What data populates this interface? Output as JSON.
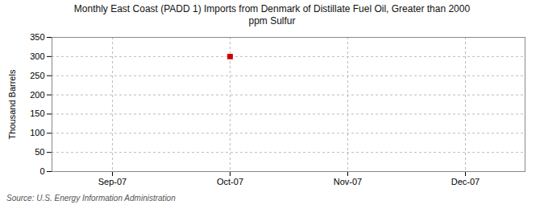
{
  "chart_data": {
    "type": "scatter",
    "title": "Monthly East Coast (PADD 1) Imports from Denmark of Distillate Fuel Oil, Greater than 2000\nppm Sulfur",
    "ylabel": "Thousand Barrels",
    "source": "Source: U.S. Energy Information Administration",
    "categories": [
      "Sep-07",
      "Oct-07",
      "Nov-07",
      "Dec-07"
    ],
    "values": [
      null,
      300,
      null,
      null
    ],
    "color": "#cc0000",
    "marker": "square",
    "ylim": [
      0,
      350
    ],
    "yticks": [
      0,
      50,
      100,
      150,
      200,
      250,
      300,
      350
    ],
    "grid": true
  }
}
